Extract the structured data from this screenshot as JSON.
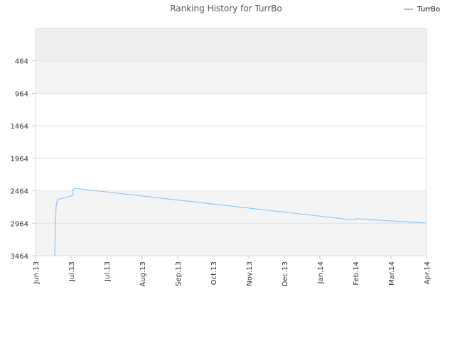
{
  "chart_data": {
    "type": "line",
    "title": "Ranking History for TurrBo",
    "xlabel": "",
    "ylabel": "",
    "y_inverted": true,
    "ylim": [
      3464,
      -36
    ],
    "y_ticks": [
      464,
      964,
      1464,
      1964,
      2464,
      2964,
      3464
    ],
    "x_ticks": [
      "Jun.13",
      "Jul.13",
      "Jul.13",
      "Aug.13",
      "Sep.13",
      "Oct.13",
      "Nov.13",
      "Dec.13",
      "Jan.14",
      "Feb.14",
      "Mar.14",
      "Apr.14"
    ],
    "xlim": [
      "2013-06-01",
      "2014-04-01"
    ],
    "grid": true,
    "legend_position": "top-right",
    "colors": {
      "line": "#90c4f0",
      "band_dark": "#efefef",
      "band_light": "#f4f4f4",
      "border": "#dddddd"
    },
    "series": [
      {
        "name": "TurrBo",
        "points": [
          {
            "x": "2013-06-16",
            "y": 3464
          },
          {
            "x": "2013-06-16",
            "y": 3320
          },
          {
            "x": "2013-06-17",
            "y": 2710
          },
          {
            "x": "2013-06-18",
            "y": 2600
          },
          {
            "x": "2013-06-19",
            "y": 2595
          },
          {
            "x": "2013-06-20",
            "y": 2590
          },
          {
            "x": "2013-06-30",
            "y": 2535
          },
          {
            "x": "2013-06-30",
            "y": 2450
          },
          {
            "x": "2013-07-01",
            "y": 2435
          },
          {
            "x": "2013-07-01",
            "y": 2425
          },
          {
            "x": "2014-02-04",
            "y": 2915
          },
          {
            "x": "2014-02-05",
            "y": 2895
          },
          {
            "x": "2014-02-06",
            "y": 2895
          },
          {
            "x": "2014-03-31",
            "y": 2960
          }
        ]
      }
    ]
  }
}
